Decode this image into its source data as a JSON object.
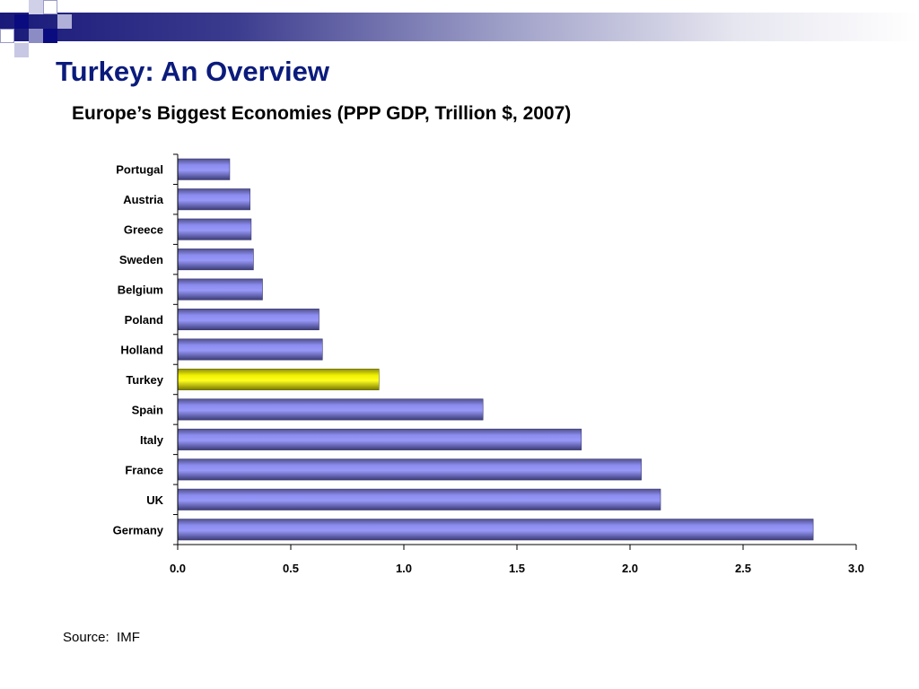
{
  "slide": {
    "title": "Turkey: An Overview",
    "source_label": "Source:",
    "source_value": "IMF"
  },
  "colors": {
    "title": "#0b1b7c",
    "bar": "#8080e8",
    "highlight_bar": "#e8e800"
  },
  "chart_data": {
    "type": "bar",
    "orientation": "horizontal",
    "title": "Europe’s Biggest Economies (PPP GDP, Trillion $, 2007)",
    "categories": [
      "Portugal",
      "Austria",
      "Greece",
      "Sweden",
      "Belgium",
      "Poland",
      "Holland",
      "Turkey",
      "Spain",
      "Italy",
      "France",
      "UK",
      "Germany"
    ],
    "values": [
      0.23,
      0.32,
      0.325,
      0.335,
      0.375,
      0.625,
      0.64,
      0.89,
      1.35,
      1.785,
      2.05,
      2.135,
      2.81
    ],
    "highlight": "Turkey",
    "xlim": [
      0,
      3.0
    ],
    "xticks": [
      "0.0",
      "0.5",
      "1.0",
      "1.5",
      "2.0",
      "2.5",
      "3.0"
    ],
    "grid": false,
    "legend": "none"
  }
}
